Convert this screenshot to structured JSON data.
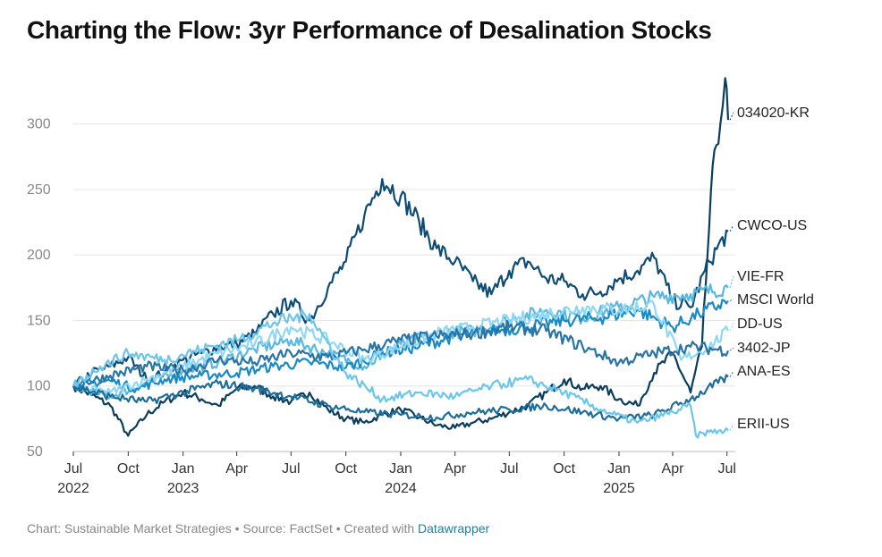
{
  "title": "Charting the Flow: 3yr Performance of Desalination Stocks",
  "footer": {
    "chart_credit": "Chart: Sustainable Market Strategies",
    "separator": "•",
    "source": "Source: FactSet",
    "created": "Created with",
    "tool": "Datawrapper"
  },
  "colors": {
    "title": "#111111",
    "gridline": "#e6e6e6",
    "axis_text": "#888888",
    "link": "#1d81a2"
  },
  "chart_data": {
    "type": "line",
    "title": "Charting the Flow: 3yr Performance of Desalination Stocks",
    "xlabel": "",
    "ylabel": "",
    "ylim": [
      50,
      340
    ],
    "xlim": [
      "2022-07-01",
      "2025-07-15"
    ],
    "yticks": [
      50,
      100,
      150,
      200,
      250,
      300
    ],
    "xticks": [
      {
        "date": "2022-07-01",
        "label": "Jul",
        "year": "2022"
      },
      {
        "date": "2022-10-01",
        "label": "Oct",
        "year": ""
      },
      {
        "date": "2023-01-01",
        "label": "Jan",
        "year": "2023"
      },
      {
        "date": "2023-04-01",
        "label": "Apr",
        "year": ""
      },
      {
        "date": "2023-07-01",
        "label": "Jul",
        "year": ""
      },
      {
        "date": "2023-10-01",
        "label": "Oct",
        "year": ""
      },
      {
        "date": "2024-01-01",
        "label": "Jan",
        "year": "2024"
      },
      {
        "date": "2024-04-01",
        "label": "Apr",
        "year": ""
      },
      {
        "date": "2024-07-01",
        "label": "Jul",
        "year": ""
      },
      {
        "date": "2024-10-01",
        "label": "Oct",
        "year": ""
      },
      {
        "date": "2025-01-01",
        "label": "Jan",
        "year": "2025"
      },
      {
        "date": "2025-04-01",
        "label": "Apr",
        "year": ""
      },
      {
        "date": "2025-07-01",
        "label": "Jul",
        "year": ""
      }
    ],
    "grid": true,
    "legend": "direct labels at right end of lines",
    "series": [
      {
        "name": "034020-KR",
        "color": "#0b3d5e",
        "label_value": 303,
        "x": [
          "2022-07-01",
          "2022-08-01",
          "2022-09-01",
          "2022-10-01",
          "2022-11-01",
          "2022-12-01",
          "2023-01-01",
          "2023-02-01",
          "2023-03-01",
          "2023-04-01",
          "2023-05-01",
          "2023-06-01",
          "2023-07-01",
          "2023-08-01",
          "2023-09-01",
          "2023-10-01",
          "2023-11-01",
          "2023-12-01",
          "2024-01-01",
          "2024-02-01",
          "2024-03-01",
          "2024-04-01",
          "2024-05-01",
          "2024-06-01",
          "2024-07-01",
          "2024-08-01",
          "2024-09-01",
          "2024-10-01",
          "2024-11-01",
          "2024-12-01",
          "2025-01-01",
          "2025-02-01",
          "2025-03-01",
          "2025-04-01",
          "2025-05-01",
          "2025-05-20",
          "2025-06-01",
          "2025-06-10",
          "2025-06-20",
          "2025-06-28",
          "2025-07-03"
        ],
        "y": [
          100,
          93,
          85,
          62,
          78,
          88,
          95,
          90,
          85,
          98,
          100,
          92,
          88,
          95,
          82,
          75,
          72,
          78,
          82,
          76,
          70,
          68,
          72,
          75,
          80,
          85,
          95,
          105,
          98,
          100,
          90,
          85,
          110,
          125,
          95,
          130,
          220,
          280,
          300,
          335,
          303
        ]
      },
      {
        "name": "CWCO-US",
        "color": "#0f4c75",
        "label_value": 218,
        "x": [
          "2022-07-01",
          "2022-08-01",
          "2022-09-01",
          "2022-10-01",
          "2022-11-01",
          "2022-12-01",
          "2023-01-01",
          "2023-02-01",
          "2023-03-01",
          "2023-04-01",
          "2023-05-01",
          "2023-06-01",
          "2023-07-01",
          "2023-08-01",
          "2023-09-01",
          "2023-10-01",
          "2023-11-01",
          "2023-12-01",
          "2024-01-01",
          "2024-02-01",
          "2024-03-01",
          "2024-04-01",
          "2024-05-01",
          "2024-06-01",
          "2024-07-01",
          "2024-08-01",
          "2024-09-01",
          "2024-10-01",
          "2024-11-01",
          "2024-12-01",
          "2025-01-01",
          "2025-02-01",
          "2025-03-01",
          "2025-04-01",
          "2025-05-01",
          "2025-06-01",
          "2025-07-03"
        ],
        "y": [
          100,
          110,
          115,
          122,
          105,
          110,
          120,
          125,
          130,
          132,
          140,
          155,
          165,
          150,
          175,
          195,
          230,
          258,
          245,
          225,
          205,
          195,
          180,
          170,
          188,
          195,
          182,
          180,
          170,
          172,
          182,
          188,
          198,
          165,
          160,
          195,
          218
        ]
      },
      {
        "name": "VIE-FR",
        "color": "#5ab8e0",
        "label_value": 175,
        "x": [
          "2022-07-01",
          "2022-09-01",
          "2022-11-01",
          "2023-01-01",
          "2023-03-01",
          "2023-05-01",
          "2023-07-01",
          "2023-09-01",
          "2023-11-01",
          "2024-01-01",
          "2024-03-01",
          "2024-05-01",
          "2024-07-01",
          "2024-09-01",
          "2024-11-01",
          "2025-01-01",
          "2025-03-01",
          "2025-05-01",
          "2025-07-03"
        ],
        "y": [
          100,
          92,
          102,
          112,
          118,
          128,
          135,
          125,
          115,
          132,
          140,
          142,
          150,
          158,
          152,
          160,
          168,
          170,
          175
        ]
      },
      {
        "name": "MSCI World",
        "color": "#1a8ac4",
        "label_value": 165,
        "x": [
          "2022-07-01",
          "2022-09-01",
          "2022-10-15",
          "2022-12-01",
          "2023-02-01",
          "2023-04-01",
          "2023-06-01",
          "2023-08-01",
          "2023-10-01",
          "2023-12-01",
          "2024-02-01",
          "2024-04-01",
          "2024-06-01",
          "2024-08-01",
          "2024-10-01",
          "2024-12-01",
          "2025-02-01",
          "2025-04-01",
          "2025-05-15",
          "2025-07-03"
        ],
        "y": [
          100,
          104,
          98,
          105,
          108,
          110,
          115,
          118,
          114,
          125,
          130,
          138,
          142,
          145,
          150,
          152,
          158,
          145,
          155,
          165
        ]
      },
      {
        "name": "DD-US",
        "color": "#8fd8f5",
        "label_value": 142,
        "x": [
          "2022-07-01",
          "2022-09-01",
          "2022-11-01",
          "2023-01-01",
          "2023-03-01",
          "2023-05-01",
          "2023-07-01",
          "2023-09-01",
          "2023-11-01",
          "2024-01-01",
          "2024-03-01",
          "2024-05-01",
          "2024-07-01",
          "2024-09-01",
          "2024-11-01",
          "2025-01-01",
          "2025-03-01",
          "2025-04-15",
          "2025-06-01",
          "2025-07-03"
        ],
        "y": [
          100,
          95,
          105,
          115,
          125,
          132,
          145,
          135,
          120,
          130,
          140,
          145,
          150,
          155,
          160,
          158,
          162,
          120,
          130,
          142
        ]
      },
      {
        "name": "3402-JP",
        "color": "#2874a6",
        "label_value": 127,
        "x": [
          "2022-07-01",
          "2022-09-01",
          "2022-11-01",
          "2023-01-01",
          "2023-03-01",
          "2023-05-01",
          "2023-07-01",
          "2023-09-01",
          "2023-11-01",
          "2024-01-01",
          "2024-03-01",
          "2024-05-01",
          "2024-07-01",
          "2024-09-01",
          "2024-11-01",
          "2025-01-01",
          "2025-03-01",
          "2025-05-01",
          "2025-07-03"
        ],
        "y": [
          100,
          108,
          115,
          112,
          120,
          118,
          125,
          122,
          128,
          135,
          138,
          140,
          145,
          142,
          130,
          118,
          125,
          130,
          127
        ]
      },
      {
        "name": "ANA-ES",
        "color": "#1f6e99",
        "label_value": 107,
        "x": [
          "2022-07-01",
          "2022-09-01",
          "2022-11-01",
          "2023-01-01",
          "2023-03-01",
          "2023-05-01",
          "2023-07-01",
          "2023-09-01",
          "2023-11-01",
          "2024-01-01",
          "2024-03-01",
          "2024-05-01",
          "2024-07-01",
          "2024-09-01",
          "2024-11-01",
          "2025-01-01",
          "2025-03-01",
          "2025-05-01",
          "2025-07-03"
        ],
        "y": [
          100,
          92,
          88,
          95,
          102,
          98,
          92,
          85,
          80,
          78,
          76,
          80,
          82,
          85,
          80,
          75,
          78,
          90,
          107
        ]
      },
      {
        "name": "ERII-US",
        "color": "#6cc6ec",
        "label_value": 66,
        "x": [
          "2022-07-01",
          "2022-08-15",
          "2022-10-01",
          "2022-12-01",
          "2023-02-01",
          "2023-04-01",
          "2023-06-01",
          "2023-08-01",
          "2023-10-01",
          "2023-12-01",
          "2024-02-01",
          "2024-04-01",
          "2024-06-01",
          "2024-08-01",
          "2024-10-01",
          "2024-12-01",
          "2025-02-01",
          "2025-04-01",
          "2025-05-01",
          "2025-05-10",
          "2025-06-01",
          "2025-07-03"
        ],
        "y": [
          100,
          115,
          125,
          120,
          128,
          135,
          148,
          155,
          110,
          90,
          95,
          92,
          100,
          105,
          95,
          82,
          72,
          80,
          85,
          62,
          65,
          66
        ]
      }
    ]
  }
}
